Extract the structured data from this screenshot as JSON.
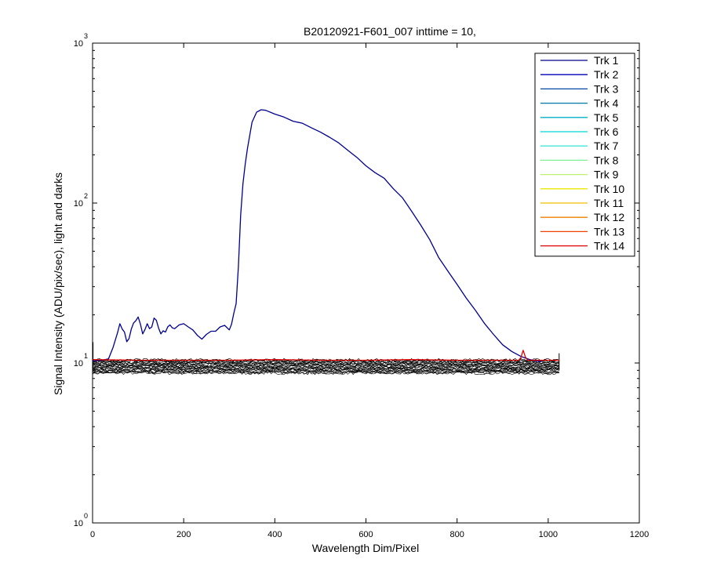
{
  "chart_data": {
    "type": "line",
    "title": "B20120921-F601_007 inttime = 10,",
    "xlabel": "Wavelength Dim/Pixel",
    "ylabel": "Signal Intensity (ADU/pix/sec), light and darks",
    "xlim": [
      0,
      1200
    ],
    "ylim": [
      1,
      1000
    ],
    "yscale": "log",
    "grid": false,
    "legend_position": "top-right",
    "x_ticks": [
      "0",
      "200",
      "400",
      "600",
      "800",
      "1000",
      "1200"
    ],
    "y_ticks": [
      {
        "base": "10",
        "exp": "0"
      },
      {
        "base": "10",
        "exp": "1"
      },
      {
        "base": "10",
        "exp": "2"
      },
      {
        "base": "10",
        "exp": "3"
      }
    ],
    "series": [
      {
        "name": "Trk 1",
        "color": "#00008f",
        "x": [
          0,
          20,
          35,
          45,
          55,
          60,
          65,
          70,
          75,
          80,
          85,
          90,
          95,
          100,
          105,
          110,
          115,
          120,
          125,
          130,
          135,
          140,
          145,
          150,
          155,
          160,
          165,
          170,
          175,
          180,
          190,
          200,
          210,
          220,
          230,
          240,
          250,
          260,
          270,
          280,
          290,
          300,
          305,
          310,
          315,
          320,
          325,
          330,
          335,
          340,
          350,
          360,
          370,
          380,
          400,
          420,
          440,
          460,
          480,
          500,
          520,
          540,
          560,
          580,
          600,
          620,
          640,
          660,
          680,
          700,
          720,
          740,
          760,
          780,
          800,
          820,
          840,
          860,
          880,
          900,
          920,
          940,
          960,
          975,
          985
        ],
        "y": [
          10.3,
          10.4,
          10.6,
          12.5,
          15.5,
          17.6,
          16.3,
          15.6,
          13.6,
          14.2,
          16.3,
          17.8,
          18.4,
          19.4,
          17.5,
          15.2,
          16.2,
          17.6,
          16.4,
          16.8,
          19.1,
          18.5,
          16.5,
          15.2,
          15.9,
          15.6,
          16.8,
          17.3,
          16.6,
          16.4,
          17.3,
          17.6,
          16.8,
          16.1,
          14.9,
          14.1,
          15.1,
          15.8,
          15.8,
          16.8,
          17.2,
          16.1,
          17.5,
          20.5,
          23.5,
          40,
          84,
          132,
          175,
          220,
          320,
          370,
          383,
          380,
          360,
          345,
          325,
          316,
          296,
          278,
          258,
          238,
          214,
          193,
          171,
          155,
          143,
          123,
          108,
          89,
          73,
          59,
          45.5,
          37.5,
          31,
          25.5,
          21.4,
          17.7,
          15.1,
          13.0,
          11.8,
          11.0,
          10.5,
          10.3,
          10.2
        ]
      },
      {
        "name": "Trk 2",
        "color": "#0000b8"
      },
      {
        "name": "Trk 3",
        "color": "#0048a8"
      },
      {
        "name": "Trk 4",
        "color": "#0078a8"
      },
      {
        "name": "Trk 5",
        "color": "#00b0c8"
      },
      {
        "name": "Trk 6",
        "color": "#00d8d8"
      },
      {
        "name": "Trk 7",
        "color": "#40e8d8"
      },
      {
        "name": "Trk 8",
        "color": "#80f098"
      },
      {
        "name": "Trk 9",
        "color": "#c0f070"
      },
      {
        "name": "Trk 10",
        "color": "#e8e800"
      },
      {
        "name": "Trk 11",
        "color": "#f0c000"
      },
      {
        "name": "Trk 12",
        "color": "#f08000"
      },
      {
        "name": "Trk 13",
        "color": "#f04000"
      },
      {
        "name": "Trk 14",
        "color": "#e00000",
        "x": [
          0,
          100,
          200,
          300,
          400,
          500,
          600,
          700,
          800,
          900,
          935,
          940,
          945,
          950,
          955,
          960,
          980,
          1025
        ],
        "y": [
          10.5,
          10.4,
          10.4,
          10.4,
          10.5,
          10.4,
          10.4,
          10.5,
          10.4,
          10.4,
          10.4,
          10.8,
          12.0,
          10.9,
          10.4,
          10.4,
          10.4,
          10.4
        ]
      }
    ],
    "dark_band": {
      "color": "#000000",
      "x_range": [
        0,
        1025
      ],
      "y_min": 8.6,
      "y_max": 10.5
    }
  }
}
